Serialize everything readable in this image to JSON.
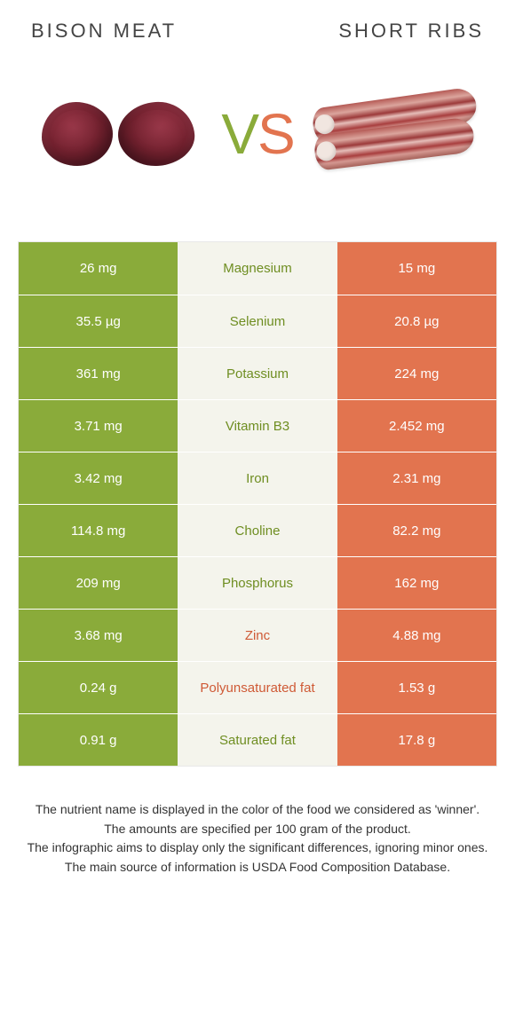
{
  "titles": {
    "left": "Bison meat",
    "right": "Short ribs"
  },
  "vs": {
    "v": "V",
    "s": "S"
  },
  "colors": {
    "left": "#8aab3a",
    "right": "#e2744f",
    "mid_bg": "#f4f4ec",
    "mid_left_text": "#6f8e22",
    "mid_right_text": "#cf5a36"
  },
  "rows": [
    {
      "left": "26 mg",
      "label": "Magnesium",
      "right": "15 mg",
      "winner": "left"
    },
    {
      "left": "35.5 µg",
      "label": "Selenium",
      "right": "20.8 µg",
      "winner": "left"
    },
    {
      "left": "361 mg",
      "label": "Potassium",
      "right": "224 mg",
      "winner": "left"
    },
    {
      "left": "3.71 mg",
      "label": "Vitamin B3",
      "right": "2.452 mg",
      "winner": "left"
    },
    {
      "left": "3.42 mg",
      "label": "Iron",
      "right": "2.31 mg",
      "winner": "left"
    },
    {
      "left": "114.8 mg",
      "label": "Choline",
      "right": "82.2 mg",
      "winner": "left"
    },
    {
      "left": "209 mg",
      "label": "Phosphorus",
      "right": "162 mg",
      "winner": "left"
    },
    {
      "left": "3.68 mg",
      "label": "Zinc",
      "right": "4.88 mg",
      "winner": "right"
    },
    {
      "left": "0.24 g",
      "label": "Polyunsaturated fat",
      "right": "1.53 g",
      "winner": "right"
    },
    {
      "left": "0.91 g",
      "label": "Saturated fat",
      "right": "17.8 g",
      "winner": "left"
    }
  ],
  "footer": {
    "l1": "The nutrient name is displayed in the color of the food we considered as 'winner'.",
    "l2": "The amounts are specified per 100 gram of the product.",
    "l3": "The infographic aims to display only the significant differences, ignoring minor ones.",
    "l4": "The main source of information is USDA Food Composition Database."
  }
}
